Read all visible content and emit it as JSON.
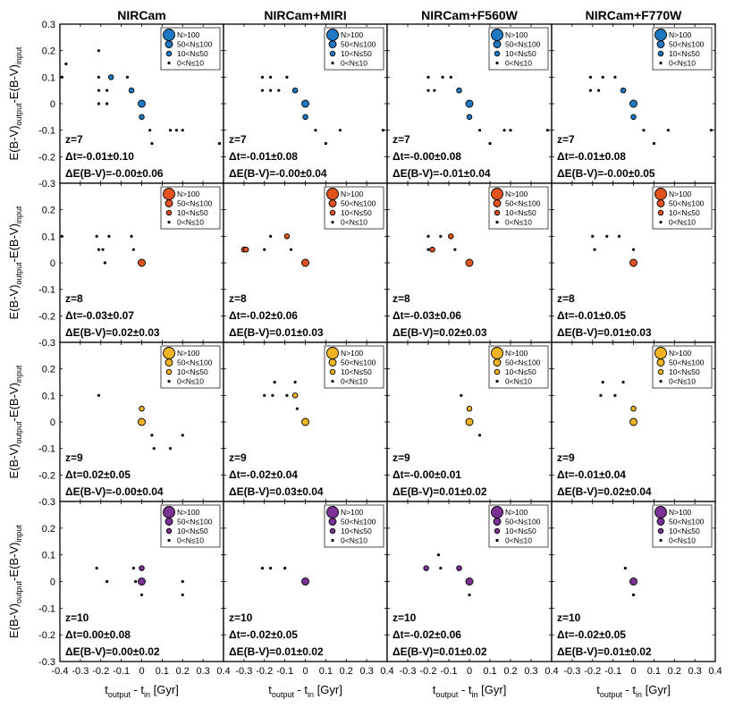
{
  "figure": {
    "column_titles": [
      "NIRCam",
      "NIRCam+MIRI",
      "NIRCam+F560W",
      "NIRCam+F770W"
    ],
    "ylabel": {
      "prefix": "E(B-V)",
      "sub1": "output",
      "mid": "-E(B-V)",
      "sub2": "input"
    },
    "xlabel": {
      "t1": "t",
      "sub1": "output",
      "mid": "- t",
      "sub2": "in",
      "unit": "[Gyr]"
    },
    "yticks": [
      "0.3",
      "0.2",
      "0.1",
      "0",
      "-0.1",
      "-0.2",
      "-0.3"
    ],
    "xticks": [
      "-0.4",
      "-0.3",
      "-0.2",
      "-0.1",
      "0",
      "0.1",
      "0.2",
      "0.3",
      "0.4"
    ],
    "legend": [
      "N>100",
      "50<N≤100",
      "10<N≤50",
      "0<N≤10"
    ]
  },
  "chart_data": {
    "type": "scatter",
    "xlim": [
      -0.4,
      0.4
    ],
    "ylim": [
      -0.3,
      0.3
    ],
    "size_classes": [
      "N>100",
      "50<N≤100",
      "10<N≤50",
      "0<N≤10"
    ],
    "rows": [
      {
        "z_label": "z=7",
        "color": "#1f78c1",
        "panels": [
          {
            "dt": "Δt=-0.01±0.10",
            "debv": "ΔE(B-V)=-0.00±0.06",
            "points": [
              [
                -0.39,
                0.1,
                3
              ],
              [
                -0.37,
                0.15,
                3
              ],
              [
                -0.21,
                0.2,
                3
              ],
              [
                -0.21,
                0.1,
                3
              ],
              [
                -0.21,
                0.05,
                3
              ],
              [
                -0.21,
                0,
                3
              ],
              [
                -0.17,
                0,
                3
              ],
              [
                -0.17,
                0.05,
                3
              ],
              [
                -0.15,
                0.1,
                2
              ],
              [
                -0.07,
                0.1,
                3
              ],
              [
                -0.05,
                0.05,
                2
              ],
              [
                0,
                0,
                1
              ],
              [
                0,
                -0.05,
                2
              ],
              [
                0.04,
                -0.1,
                3
              ],
              [
                0.05,
                -0.15,
                3
              ],
              [
                0.14,
                -0.1,
                3
              ],
              [
                0.17,
                -0.1,
                3
              ],
              [
                0.2,
                -0.1,
                3
              ],
              [
                0.38,
                -0.15,
                3
              ]
            ]
          },
          {
            "dt": "Δt=-0.01±0.08",
            "debv": "ΔE(B-V)=-0.00±0.04",
            "points": [
              [
                -0.21,
                0.1,
                3
              ],
              [
                -0.21,
                0.05,
                3
              ],
              [
                -0.17,
                0.1,
                3
              ],
              [
                -0.17,
                0.05,
                3
              ],
              [
                -0.13,
                0.05,
                3
              ],
              [
                -0.09,
                0.1,
                3
              ],
              [
                -0.05,
                0.05,
                2
              ],
              [
                0,
                0,
                1
              ],
              [
                0,
                -0.05,
                2
              ],
              [
                0.05,
                -0.1,
                3
              ],
              [
                0.1,
                -0.15,
                3
              ],
              [
                0.17,
                -0.1,
                3
              ],
              [
                0.38,
                -0.1,
                3
              ]
            ]
          },
          {
            "dt": "Δt=-0.00±0.08",
            "debv": "ΔE(B-V)=-0.01±0.04",
            "points": [
              [
                -0.2,
                0.1,
                3
              ],
              [
                -0.2,
                0.05,
                3
              ],
              [
                -0.17,
                0.05,
                3
              ],
              [
                -0.13,
                0.1,
                3
              ],
              [
                -0.09,
                0.1,
                3
              ],
              [
                -0.05,
                0.05,
                2
              ],
              [
                0,
                0,
                1
              ],
              [
                0,
                -0.05,
                2
              ],
              [
                0.05,
                -0.1,
                3
              ],
              [
                0.1,
                -0.15,
                3
              ],
              [
                0.17,
                -0.1,
                3
              ],
              [
                0.2,
                -0.1,
                3
              ],
              [
                0.38,
                -0.1,
                3
              ]
            ]
          },
          {
            "dt": "Δt=-0.01±0.08",
            "debv": "ΔE(B-V)=-0.00±0.05",
            "points": [
              [
                -0.21,
                0.1,
                3
              ],
              [
                -0.21,
                0.05,
                3
              ],
              [
                -0.17,
                0.05,
                3
              ],
              [
                -0.15,
                0.1,
                3
              ],
              [
                -0.09,
                0.1,
                3
              ],
              [
                -0.05,
                0.05,
                2
              ],
              [
                0,
                0,
                1
              ],
              [
                0,
                -0.05,
                2
              ],
              [
                0.05,
                -0.1,
                3
              ],
              [
                0.1,
                -0.15,
                3
              ],
              [
                0.17,
                -0.1,
                3
              ],
              [
                0.38,
                -0.1,
                3
              ]
            ]
          }
        ]
      },
      {
        "z_label": "z=8",
        "color": "#e0531f",
        "panels": [
          {
            "dt": "Δt=-0.03±0.07",
            "debv": "ΔE(B-V)=0.02±0.03",
            "points": [
              [
                -0.39,
                0.1,
                3
              ],
              [
                -0.22,
                0.1,
                3
              ],
              [
                -0.21,
                0.05,
                3
              ],
              [
                -0.19,
                0.05,
                3
              ],
              [
                -0.18,
                0,
                3
              ],
              [
                -0.16,
                0.1,
                3
              ],
              [
                -0.05,
                0.1,
                3
              ],
              [
                -0.04,
                0.05,
                3
              ],
              [
                0,
                0,
                1
              ]
            ]
          },
          {
            "dt": "Δt=-0.02±0.06",
            "debv": "ΔE(B-V)=0.01±0.03",
            "points": [
              [
                -0.3,
                0.05,
                2
              ],
              [
                -0.29,
                0.05,
                2
              ],
              [
                -0.2,
                0.05,
                3
              ],
              [
                -0.17,
                0.1,
                3
              ],
              [
                -0.09,
                0.1,
                2
              ],
              [
                -0.07,
                0.05,
                3
              ],
              [
                0,
                0,
                1
              ]
            ]
          },
          {
            "dt": "Δt=-0.03±0.06",
            "debv": "ΔE(B-V)=0.02±0.03",
            "points": [
              [
                -0.2,
                0.1,
                3
              ],
              [
                -0.2,
                0.05,
                3
              ],
              [
                -0.18,
                0.05,
                2
              ],
              [
                -0.14,
                0.1,
                3
              ],
              [
                -0.09,
                0.1,
                2
              ],
              [
                -0.07,
                0.05,
                3
              ],
              [
                0,
                0,
                1
              ]
            ]
          },
          {
            "dt": "Δt=-0.01±0.05",
            "debv": "ΔE(B-V)=0.01±0.03",
            "points": [
              [
                -0.2,
                0.1,
                3
              ],
              [
                -0.19,
                0.05,
                3
              ],
              [
                -0.13,
                0.1,
                3
              ],
              [
                -0.07,
                0.1,
                3
              ],
              [
                0,
                0.05,
                3
              ],
              [
                0,
                0,
                1
              ]
            ]
          }
        ]
      },
      {
        "z_label": "z=9",
        "color": "#f0b323",
        "panels": [
          {
            "dt": "Δt=0.02±0.05",
            "debv": "ΔE(B-V)=-0.00±0.04",
            "points": [
              [
                -0.21,
                0.1,
                3
              ],
              [
                0,
                0.05,
                2
              ],
              [
                0,
                0,
                1
              ],
              [
                0.05,
                -0.05,
                3
              ],
              [
                0.06,
                -0.1,
                3
              ],
              [
                0.14,
                -0.1,
                3
              ],
              [
                0.2,
                -0.05,
                3
              ]
            ]
          },
          {
            "dt": "Δt=-0.02±0.04",
            "debv": "ΔE(B-V)=0.03±0.04",
            "points": [
              [
                -0.2,
                0.1,
                3
              ],
              [
                -0.16,
                0.1,
                3
              ],
              [
                -0.15,
                0.15,
                3
              ],
              [
                -0.09,
                0.1,
                3
              ],
              [
                -0.05,
                0.15,
                3
              ],
              [
                -0.05,
                0.1,
                2
              ],
              [
                -0.04,
                0.05,
                3
              ],
              [
                0,
                0,
                1
              ]
            ]
          },
          {
            "dt": "Δt=-0.00±0.01",
            "debv": "ΔE(B-V)=0.01±0.02",
            "points": [
              [
                -0.04,
                0.1,
                3
              ],
              [
                0,
                0.05,
                2
              ],
              [
                0,
                0,
                1
              ],
              [
                0.05,
                -0.05,
                3
              ]
            ]
          },
          {
            "dt": "Δt=-0.01±0.04",
            "debv": "ΔE(B-V)=0.02±0.04",
            "points": [
              [
                -0.16,
                0.1,
                3
              ],
              [
                -0.15,
                0.15,
                3
              ],
              [
                -0.09,
                0.1,
                3
              ],
              [
                -0.05,
                0.15,
                3
              ],
              [
                0,
                0.05,
                2
              ],
              [
                0,
                0,
                1
              ]
            ]
          }
        ]
      },
      {
        "z_label": "z=10",
        "color": "#7b3294",
        "panels": [
          {
            "dt": "Δt=0.00±0.08",
            "debv": "ΔE(B-V)=0.00±0.02",
            "points": [
              [
                -0.22,
                0.05,
                3
              ],
              [
                -0.17,
                0,
                3
              ],
              [
                -0.04,
                0.05,
                3
              ],
              [
                0,
                0.05,
                2
              ],
              [
                -0.03,
                0,
                3
              ],
              [
                0,
                0,
                1
              ],
              [
                0,
                -0.05,
                3
              ],
              [
                0.2,
                0,
                3
              ],
              [
                0.2,
                -0.05,
                3
              ]
            ]
          },
          {
            "dt": "Δt=-0.02±0.05",
            "debv": "ΔE(B-V)=0.01±0.02",
            "points": [
              [
                -0.21,
                0.05,
                3
              ],
              [
                -0.17,
                0.05,
                3
              ],
              [
                -0.1,
                0.05,
                3
              ],
              [
                0,
                0,
                1
              ]
            ]
          },
          {
            "dt": "Δt=-0.02±0.06",
            "debv": "ΔE(B-V)=0.01±0.02",
            "points": [
              [
                -0.21,
                0.05,
                2
              ],
              [
                -0.15,
                0.1,
                3
              ],
              [
                -0.14,
                0.05,
                3
              ],
              [
                -0.05,
                0.05,
                2
              ],
              [
                0,
                0,
                1
              ],
              [
                0,
                -0.05,
                3
              ]
            ]
          },
          {
            "dt": "Δt=-0.02±0.05",
            "debv": "ΔE(B-V)=0.01±0.02",
            "points": [
              [
                -0.04,
                0.05,
                3
              ],
              [
                0,
                0,
                1
              ],
              [
                0,
                -0.05,
                3
              ]
            ]
          }
        ]
      }
    ]
  }
}
